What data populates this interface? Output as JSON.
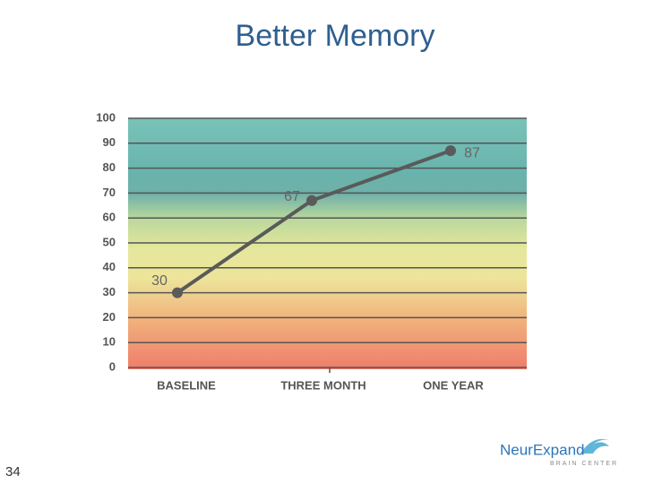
{
  "chart_data": {
    "type": "line",
    "title": "Better Memory",
    "categories": [
      "BASELINE",
      "THREE MONTH",
      "ONE YEAR"
    ],
    "values": [
      30,
      67,
      87
    ],
    "color": "#5a5a5a",
    "ylim": [
      0,
      100
    ],
    "yticks": [
      0,
      10,
      20,
      30,
      40,
      50,
      60,
      70,
      80,
      90,
      100
    ],
    "grid": true
  },
  "slide_number": "34",
  "logo": {
    "name": "NeurExpand",
    "tagline": "BRAIN CENTER"
  }
}
